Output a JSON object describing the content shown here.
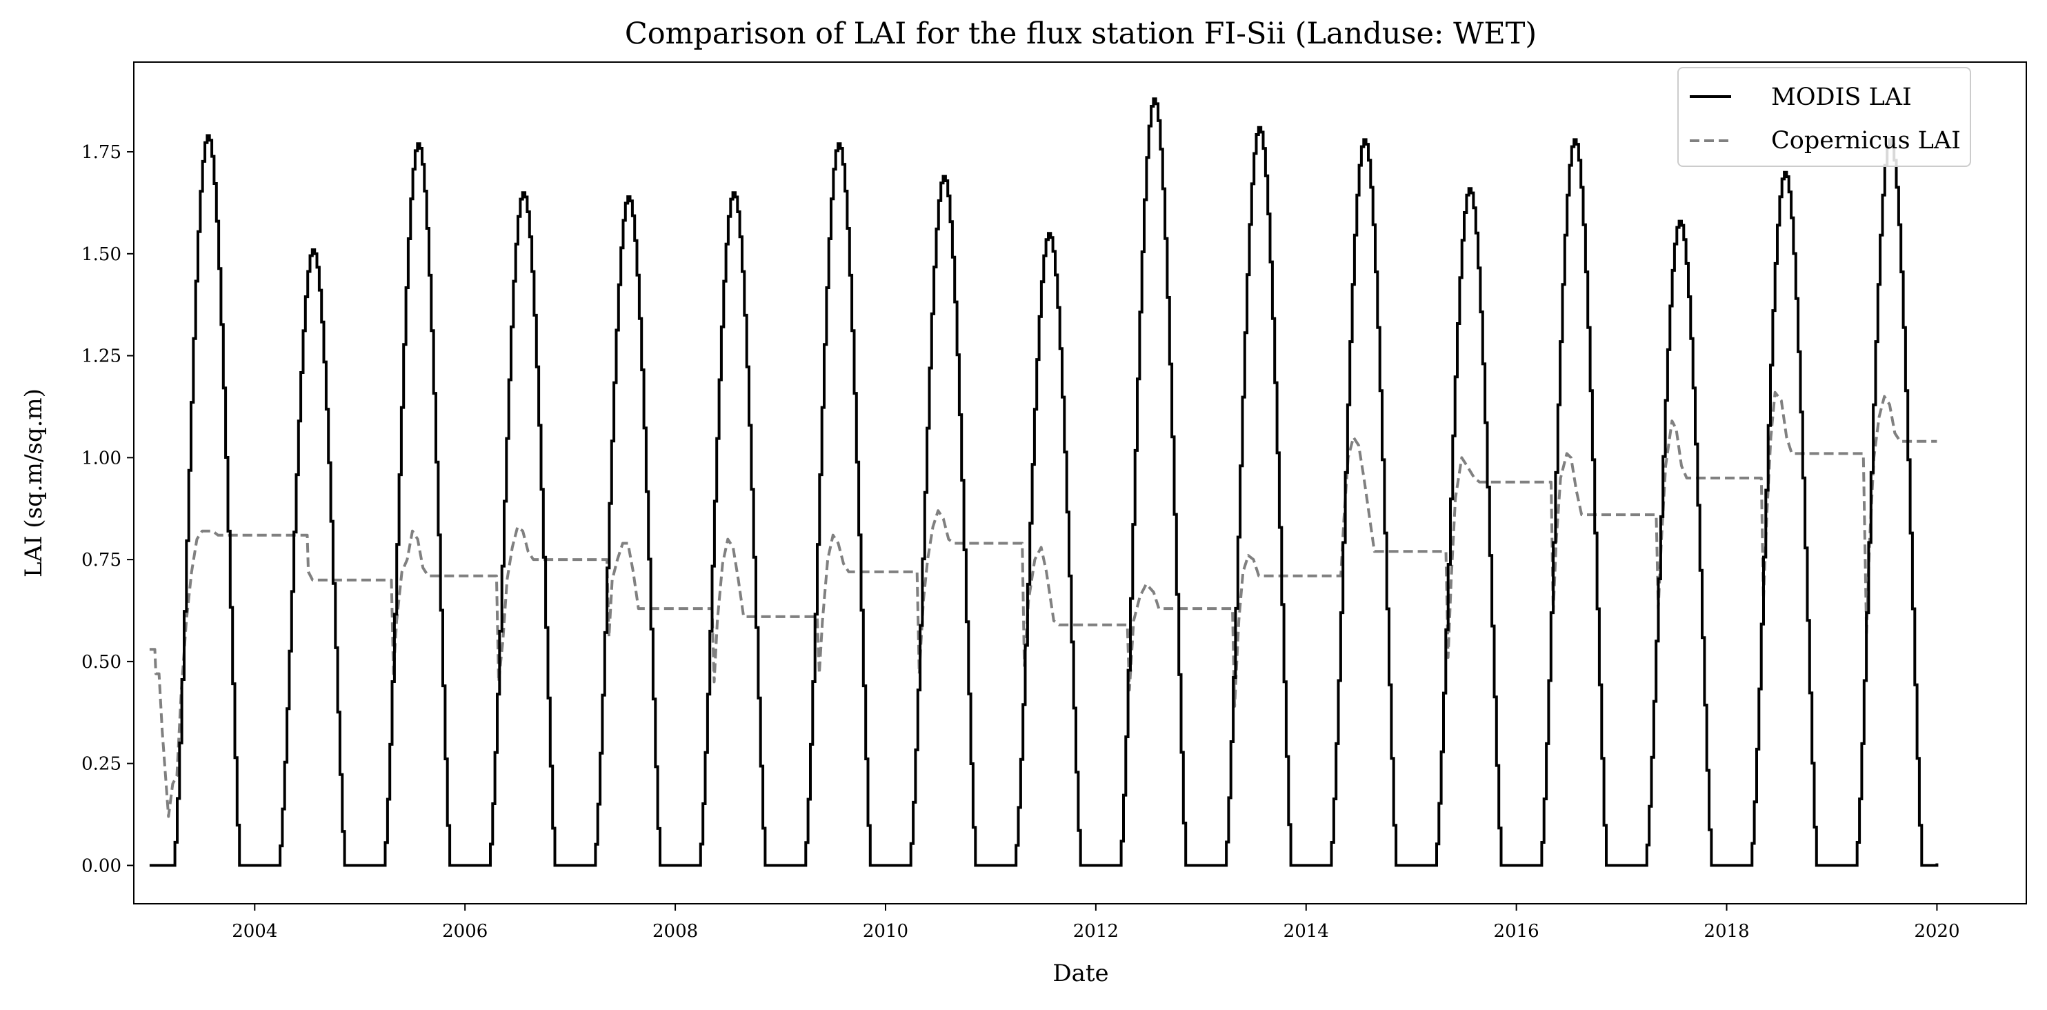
{
  "chart_data": {
    "type": "line",
    "title": "Comparison of LAI for the flux station FI-Sii (Landuse: WET)",
    "xlabel": "Date",
    "ylabel": "LAI (sq.m/sq.m)",
    "xlim": [
      2002.85,
      2020.85
    ],
    "ylim": [
      -0.094,
      1.97
    ],
    "x_ticks": [
      2004,
      2006,
      2008,
      2010,
      2012,
      2014,
      2016,
      2018,
      2020
    ],
    "x_tick_labels": [
      "2004",
      "2006",
      "2008",
      "2010",
      "2012",
      "2014",
      "2016",
      "2018",
      "2020"
    ],
    "y_ticks": [
      0.0,
      0.25,
      0.5,
      0.75,
      1.0,
      1.25,
      1.5,
      1.75
    ],
    "y_tick_labels": [
      "0.00",
      "0.25",
      "0.50",
      "0.75",
      "1.00",
      "1.25",
      "1.50",
      "1.75"
    ],
    "grid": false,
    "legend_position": "top-right",
    "series": [
      {
        "name": "MODIS LAI",
        "color": "#000000",
        "style": "solid",
        "peaks": [
          {
            "year": 2003,
            "peak": 1.79
          },
          {
            "year": 2004,
            "peak": 1.51
          },
          {
            "year": 2005,
            "peak": 1.77
          },
          {
            "year": 2006,
            "peak": 1.65
          },
          {
            "year": 2007,
            "peak": 1.64
          },
          {
            "year": 2008,
            "peak": 1.65
          },
          {
            "year": 2009,
            "peak": 1.77
          },
          {
            "year": 2010,
            "peak": 1.69
          },
          {
            "year": 2011,
            "peak": 1.55
          },
          {
            "year": 2012,
            "peak": 1.88
          },
          {
            "year": 2013,
            "peak": 1.81
          },
          {
            "year": 2014,
            "peak": 1.78
          },
          {
            "year": 2015,
            "peak": 1.66
          },
          {
            "year": 2016,
            "peak": 1.78
          },
          {
            "year": 2017,
            "peak": 1.58
          },
          {
            "year": 2018,
            "peak": 1.7
          },
          {
            "year": 2019,
            "peak": 1.78
          }
        ],
        "season_start": 0.22,
        "season_peak": 0.55,
        "season_end": 0.85,
        "end_x": 2020.0
      },
      {
        "name": "Copernicus LAI",
        "color": "#808080",
        "style": "dashed",
        "points": [
          [
            2003.0,
            0.53
          ],
          [
            2003.05,
            0.53
          ],
          [
            2003.06,
            0.47
          ],
          [
            2003.09,
            0.47
          ],
          [
            2003.12,
            0.33
          ],
          [
            2003.18,
            0.12
          ],
          [
            2003.22,
            0.2
          ],
          [
            2003.26,
            0.22
          ],
          [
            2003.3,
            0.42
          ],
          [
            2003.35,
            0.6
          ],
          [
            2003.4,
            0.72
          ],
          [
            2003.45,
            0.8
          ],
          [
            2003.5,
            0.82
          ],
          [
            2003.6,
            0.82
          ],
          [
            2003.65,
            0.81
          ],
          [
            2004.5,
            0.81
          ],
          [
            2004.51,
            0.72
          ],
          [
            2004.55,
            0.7
          ],
          [
            2005.3,
            0.7
          ],
          [
            2005.32,
            0.47
          ],
          [
            2005.35,
            0.6
          ],
          [
            2005.4,
            0.72
          ],
          [
            2005.45,
            0.75
          ],
          [
            2005.5,
            0.82
          ],
          [
            2005.55,
            0.8
          ],
          [
            2005.6,
            0.73
          ],
          [
            2005.65,
            0.71
          ],
          [
            2006.3,
            0.71
          ],
          [
            2006.32,
            0.45
          ],
          [
            2006.36,
            0.55
          ],
          [
            2006.4,
            0.7
          ],
          [
            2006.45,
            0.78
          ],
          [
            2006.5,
            0.83
          ],
          [
            2006.55,
            0.82
          ],
          [
            2006.6,
            0.77
          ],
          [
            2006.65,
            0.75
          ],
          [
            2007.35,
            0.75
          ],
          [
            2007.37,
            0.56
          ],
          [
            2007.4,
            0.7
          ],
          [
            2007.45,
            0.75
          ],
          [
            2007.5,
            0.79
          ],
          [
            2007.55,
            0.79
          ],
          [
            2007.6,
            0.72
          ],
          [
            2007.65,
            0.63
          ],
          [
            2008.35,
            0.63
          ],
          [
            2008.37,
            0.45
          ],
          [
            2008.4,
            0.6
          ],
          [
            2008.45,
            0.74
          ],
          [
            2008.5,
            0.8
          ],
          [
            2008.55,
            0.78
          ],
          [
            2008.6,
            0.7
          ],
          [
            2008.65,
            0.61
          ],
          [
            2009.35,
            0.61
          ],
          [
            2009.37,
            0.47
          ],
          [
            2009.4,
            0.6
          ],
          [
            2009.45,
            0.75
          ],
          [
            2009.5,
            0.81
          ],
          [
            2009.55,
            0.79
          ],
          [
            2009.6,
            0.74
          ],
          [
            2009.65,
            0.72
          ],
          [
            2010.3,
            0.72
          ],
          [
            2010.32,
            0.47
          ],
          [
            2010.36,
            0.65
          ],
          [
            2010.4,
            0.75
          ],
          [
            2010.45,
            0.83
          ],
          [
            2010.5,
            0.87
          ],
          [
            2010.55,
            0.85
          ],
          [
            2010.6,
            0.8
          ],
          [
            2010.65,
            0.79
          ],
          [
            2011.3,
            0.79
          ],
          [
            2011.32,
            0.49
          ],
          [
            2011.36,
            0.65
          ],
          [
            2011.42,
            0.75
          ],
          [
            2011.48,
            0.78
          ],
          [
            2011.53,
            0.72
          ],
          [
            2011.6,
            0.6
          ],
          [
            2011.65,
            0.59
          ],
          [
            2012.3,
            0.59
          ],
          [
            2012.32,
            0.43
          ],
          [
            2012.36,
            0.6
          ],
          [
            2012.42,
            0.66
          ],
          [
            2012.48,
            0.69
          ],
          [
            2012.55,
            0.67
          ],
          [
            2012.6,
            0.63
          ],
          [
            2012.65,
            0.63
          ],
          [
            2013.3,
            0.63
          ],
          [
            2013.32,
            0.39
          ],
          [
            2013.36,
            0.6
          ],
          [
            2013.4,
            0.72
          ],
          [
            2013.45,
            0.76
          ],
          [
            2013.5,
            0.75
          ],
          [
            2013.55,
            0.71
          ],
          [
            2013.6,
            0.71
          ],
          [
            2014.33,
            0.71
          ],
          [
            2014.36,
            0.85
          ],
          [
            2014.4,
            1.0
          ],
          [
            2014.45,
            1.05
          ],
          [
            2014.5,
            1.03
          ],
          [
            2014.55,
            0.95
          ],
          [
            2014.6,
            0.86
          ],
          [
            2014.65,
            0.77
          ],
          [
            2015.33,
            0.77
          ],
          [
            2015.35,
            0.51
          ],
          [
            2015.38,
            0.7
          ],
          [
            2015.42,
            0.9
          ],
          [
            2015.48,
            1.0
          ],
          [
            2015.53,
            0.98
          ],
          [
            2015.6,
            0.95
          ],
          [
            2015.65,
            0.94
          ],
          [
            2016.33,
            0.94
          ],
          [
            2016.35,
            0.62
          ],
          [
            2016.38,
            0.8
          ],
          [
            2016.42,
            0.95
          ],
          [
            2016.48,
            1.01
          ],
          [
            2016.52,
            1.0
          ],
          [
            2016.57,
            0.92
          ],
          [
            2016.62,
            0.86
          ],
          [
            2017.33,
            0.86
          ],
          [
            2017.35,
            0.63
          ],
          [
            2017.38,
            0.8
          ],
          [
            2017.42,
            0.98
          ],
          [
            2017.48,
            1.09
          ],
          [
            2017.52,
            1.07
          ],
          [
            2017.57,
            0.98
          ],
          [
            2017.62,
            0.95
          ],
          [
            2018.33,
            0.95
          ],
          [
            2018.35,
            0.65
          ],
          [
            2018.38,
            0.85
          ],
          [
            2018.42,
            1.05
          ],
          [
            2018.46,
            1.16
          ],
          [
            2018.52,
            1.14
          ],
          [
            2018.57,
            1.05
          ],
          [
            2018.62,
            1.01
          ],
          [
            2019.3,
            1.01
          ],
          [
            2019.33,
            0.57
          ],
          [
            2019.36,
            0.8
          ],
          [
            2019.4,
            1.0
          ],
          [
            2019.45,
            1.1
          ],
          [
            2019.5,
            1.15
          ],
          [
            2019.55,
            1.13
          ],
          [
            2019.6,
            1.06
          ],
          [
            2019.65,
            1.04
          ],
          [
            2020.0,
            1.04
          ]
        ]
      }
    ]
  }
}
